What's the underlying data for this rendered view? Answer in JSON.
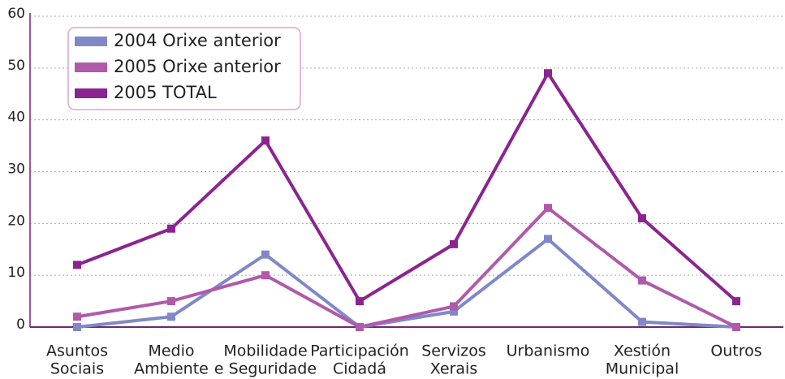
{
  "chart_data": {
    "type": "line",
    "categories": [
      [
        "Asuntos",
        "Sociais"
      ],
      [
        "Medio",
        "Ambiente"
      ],
      [
        "Mobilidade",
        "e Seguridade"
      ],
      [
        "Participación",
        "Cidadá"
      ],
      [
        "Servizos",
        "Xerais"
      ],
      [
        "Urbanismo"
      ],
      [
        "Xestión",
        "Municipal"
      ],
      [
        "Outros"
      ]
    ],
    "series": [
      {
        "name": "2004 Orixe anterior",
        "color": "#8088c8",
        "values": [
          0,
          2,
          14,
          0,
          3,
          17,
          1,
          0
        ]
      },
      {
        "name": "2005 Orixe anterior",
        "color": "#b05aaa",
        "values": [
          2,
          5,
          10,
          0,
          4,
          23,
          9,
          0
        ]
      },
      {
        "name": "2005 TOTAL",
        "color": "#8b2490",
        "values": [
          12,
          19,
          36,
          5,
          16,
          49,
          21,
          5
        ]
      }
    ],
    "ylim": [
      0,
      60
    ],
    "yticks": [
      0,
      10,
      20,
      30,
      40,
      50,
      60
    ],
    "grid": true,
    "legend": "upper left"
  }
}
